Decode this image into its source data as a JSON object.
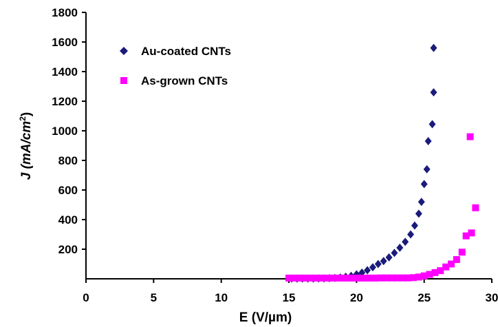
{
  "chart_data": {
    "type": "scatter",
    "xlabel": "E (V/µm)",
    "ylabel_main": "J (mA/cm",
    "ylabel_sup": "2",
    "ylabel_close": ")",
    "xlim": [
      0,
      30
    ],
    "ylim": [
      0,
      1800
    ],
    "x_ticks": [
      "0",
      "5",
      "10",
      "15",
      "20",
      "25",
      "30"
    ],
    "y_ticks": [
      "200",
      "400",
      "600",
      "800",
      "1000",
      "1200",
      "1400",
      "1600",
      "1800"
    ],
    "grid": false,
    "legend_position": "top-left",
    "series": [
      {
        "name": "Au-coated CNTs",
        "marker": "diamond",
        "color": "#1b1b7a",
        "points": [
          [
            15.2,
            2
          ],
          [
            15.6,
            2
          ],
          [
            16.0,
            2
          ],
          [
            16.4,
            2
          ],
          [
            16.8,
            2
          ],
          [
            17.2,
            3
          ],
          [
            17.6,
            3
          ],
          [
            18.0,
            4
          ],
          [
            18.4,
            6
          ],
          [
            18.8,
            9
          ],
          [
            19.2,
            14
          ],
          [
            19.6,
            20
          ],
          [
            20.0,
            30
          ],
          [
            20.4,
            42
          ],
          [
            20.8,
            58
          ],
          [
            21.2,
            78
          ],
          [
            21.6,
            100
          ],
          [
            22.0,
            120
          ],
          [
            22.4,
            145
          ],
          [
            22.8,
            175
          ],
          [
            23.2,
            210
          ],
          [
            23.6,
            250
          ],
          [
            24.0,
            300
          ],
          [
            24.3,
            360
          ],
          [
            24.6,
            440
          ],
          [
            24.8,
            520
          ],
          [
            25.0,
            640
          ],
          [
            25.2,
            740
          ],
          [
            25.3,
            930
          ],
          [
            25.6,
            1045
          ],
          [
            25.7,
            1260
          ],
          [
            25.7,
            1560
          ]
        ]
      },
      {
        "name": "As-grown CNTs",
        "marker": "square",
        "color": "#ff00ff",
        "points": [
          [
            15.0,
            5
          ],
          [
            15.4,
            5
          ],
          [
            15.8,
            5
          ],
          [
            16.2,
            5
          ],
          [
            16.6,
            5
          ],
          [
            17.0,
            5
          ],
          [
            17.4,
            5
          ],
          [
            17.8,
            5
          ],
          [
            18.2,
            5
          ],
          [
            18.6,
            5
          ],
          [
            19.0,
            5
          ],
          [
            19.4,
            5
          ],
          [
            19.8,
            5
          ],
          [
            20.2,
            5
          ],
          [
            20.6,
            5
          ],
          [
            21.0,
            5
          ],
          [
            21.4,
            5
          ],
          [
            21.8,
            6
          ],
          [
            22.2,
            6
          ],
          [
            22.6,
            6
          ],
          [
            23.0,
            6
          ],
          [
            23.4,
            6
          ],
          [
            23.8,
            6
          ],
          [
            24.2,
            8
          ],
          [
            24.6,
            12
          ],
          [
            25.0,
            20
          ],
          [
            25.4,
            30
          ],
          [
            25.8,
            42
          ],
          [
            26.2,
            55
          ],
          [
            26.6,
            80
          ],
          [
            27.0,
            100
          ],
          [
            27.4,
            130
          ],
          [
            27.8,
            180
          ],
          [
            28.1,
            290
          ],
          [
            28.5,
            310
          ],
          [
            28.4,
            960
          ],
          [
            28.8,
            480
          ]
        ]
      }
    ]
  }
}
